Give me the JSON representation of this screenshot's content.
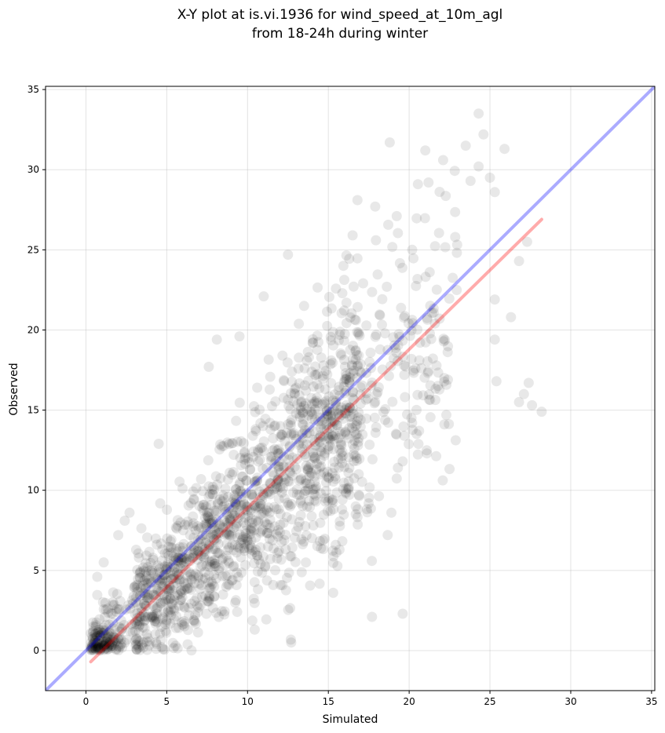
{
  "chart_data": {
    "type": "scatter",
    "title_line1": "X-Y plot at is.vi.1936 for wind_speed_at_10m_agl",
    "title_line2": "from 18-24h during winter",
    "xlabel": "Simulated",
    "ylabel": "Observed",
    "xlim": [
      -2.5,
      35.2
    ],
    "ylim": [
      -2.5,
      35.2
    ],
    "xticks": [
      0,
      5,
      10,
      15,
      20,
      25,
      30,
      35
    ],
    "yticks": [
      0,
      5,
      10,
      15,
      20,
      25,
      30,
      35
    ],
    "grid": true,
    "legend": "none",
    "reference_line": {
      "label": "1:1 line",
      "color": "#0000ff",
      "from": [
        -2.5,
        -2.5
      ],
      "to": [
        35.2,
        35.2
      ]
    },
    "fit_line": {
      "label": "linear fit",
      "color": "#ff0000",
      "from": [
        0.3,
        -0.7
      ],
      "to": [
        28.2,
        26.9
      ]
    },
    "point_color": "#000000",
    "points_described": "approx. 1900 observations clustered along the 1:1 line; dense near origin (0-3) and along 5-15; sparse outliers to (24.3, 33.5), (18.8, 31.7), (28.2, 14.9), (19.6, 2.3)",
    "outlier_points": [
      [
        24.3,
        33.5
      ],
      [
        24.6,
        32.2
      ],
      [
        23.5,
        31.5
      ],
      [
        21.0,
        31.2
      ],
      [
        18.8,
        31.7
      ],
      [
        22.1,
        30.6
      ],
      [
        25.9,
        31.3
      ],
      [
        24.3,
        30.2
      ],
      [
        23.8,
        29.3
      ],
      [
        25.0,
        29.5
      ],
      [
        21.2,
        29.2
      ],
      [
        25.3,
        28.6
      ],
      [
        16.8,
        28.1
      ],
      [
        17.9,
        27.7
      ],
      [
        27.3,
        25.5
      ],
      [
        26.8,
        24.3
      ],
      [
        26.3,
        20.8
      ],
      [
        25.3,
        21.9
      ],
      [
        25.3,
        19.4
      ],
      [
        25.4,
        16.8
      ],
      [
        27.1,
        16.0
      ],
      [
        27.4,
        16.7
      ],
      [
        26.8,
        15.5
      ],
      [
        27.6,
        15.3
      ],
      [
        28.2,
        14.9
      ],
      [
        22.4,
        16.9
      ],
      [
        22.3,
        14.7
      ],
      [
        21.1,
        12.3
      ],
      [
        19.6,
        11.8
      ],
      [
        19.7,
        13.4
      ],
      [
        18.9,
        8.6
      ],
      [
        19.6,
        2.3
      ],
      [
        17.7,
        2.1
      ],
      [
        15.3,
        3.6
      ],
      [
        12.7,
        0.5
      ],
      [
        16.5,
        25.9
      ],
      [
        12.5,
        24.7
      ],
      [
        13.5,
        21.5
      ],
      [
        11.0,
        22.1
      ],
      [
        9.5,
        19.6
      ],
      [
        8.1,
        19.4
      ],
      [
        7.6,
        17.7
      ],
      [
        4.5,
        12.9
      ],
      [
        2.7,
        8.6
      ],
      [
        2.4,
        8.1
      ],
      [
        2.0,
        7.2
      ],
      [
        1.1,
        5.5
      ],
      [
        0.7,
        4.6
      ]
    ]
  }
}
